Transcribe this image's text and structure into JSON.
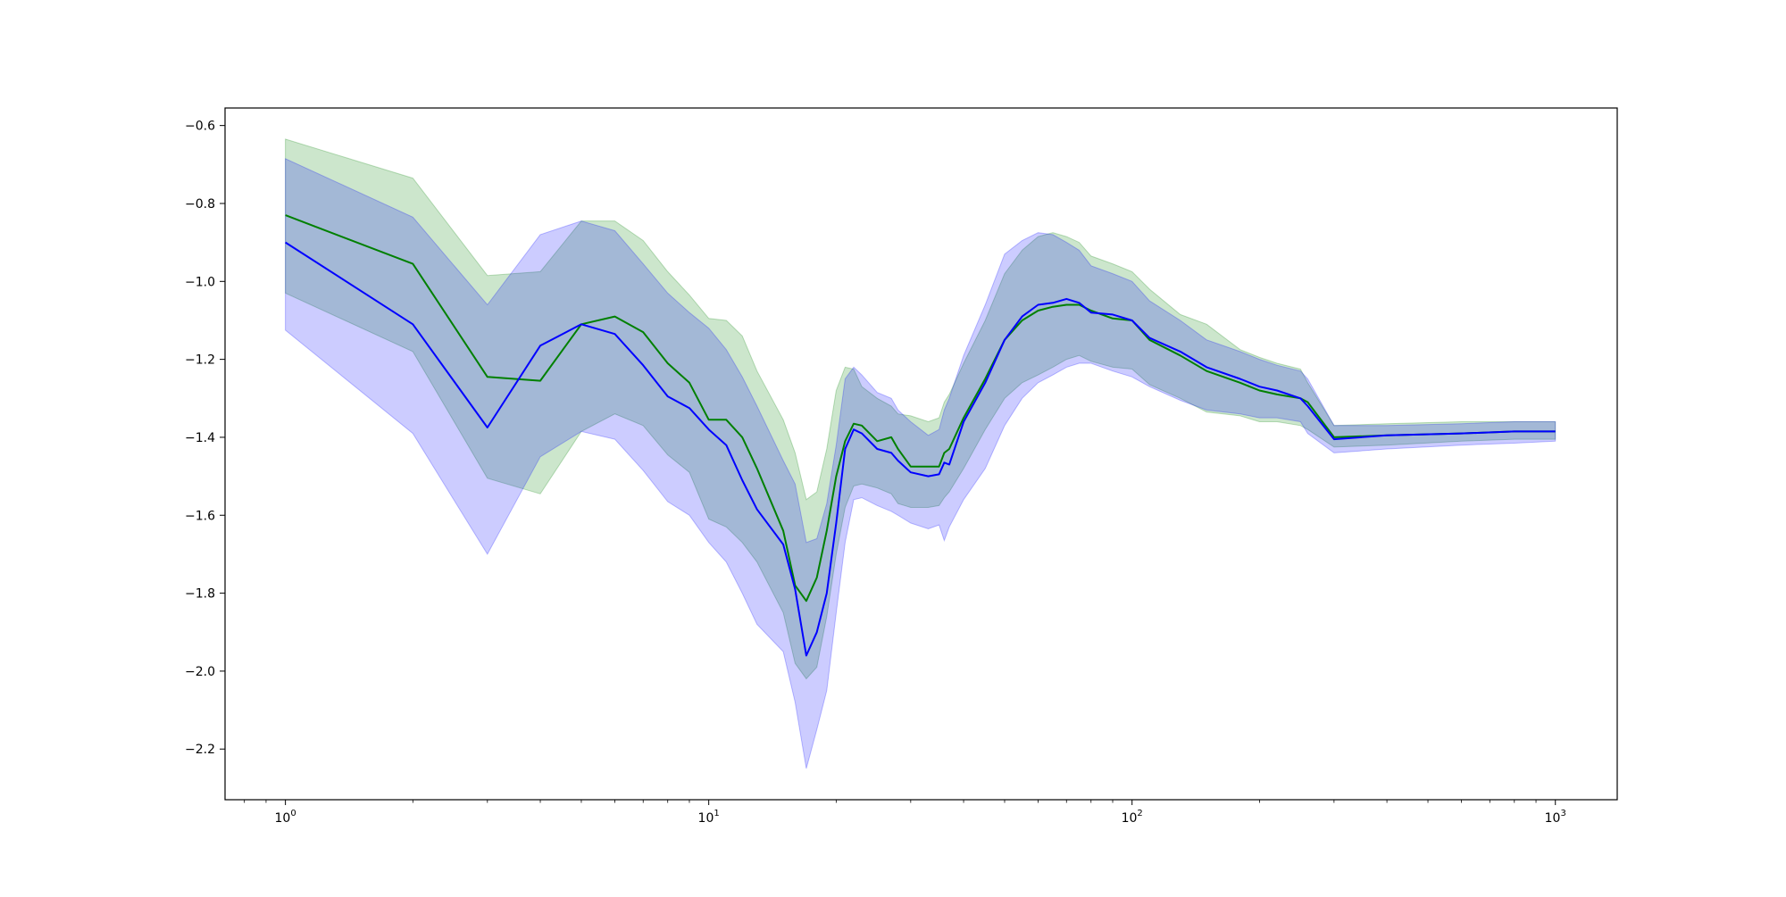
{
  "chart_data": {
    "type": "line",
    "title": "",
    "xlabel": "",
    "ylabel": "",
    "x_scale": "log",
    "xlim": [
      0.72,
      1400
    ],
    "ylim": [
      -2.33,
      -0.555
    ],
    "grid": false,
    "legend": "none",
    "xticks": [
      {
        "value": 1,
        "base": "10",
        "exp": "0"
      },
      {
        "value": 10,
        "base": "10",
        "exp": "1"
      },
      {
        "value": 100,
        "base": "10",
        "exp": "2"
      },
      {
        "value": 1000,
        "base": "10",
        "exp": "3"
      }
    ],
    "yticks": [
      {
        "value": -0.6,
        "label": "−0.6"
      },
      {
        "value": -0.8,
        "label": "−0.8"
      },
      {
        "value": -1.0,
        "label": "−1.0"
      },
      {
        "value": -1.2,
        "label": "−1.2"
      },
      {
        "value": -1.4,
        "label": "−1.4"
      },
      {
        "value": -1.6,
        "label": "−1.6"
      },
      {
        "value": -1.8,
        "label": "−1.8"
      },
      {
        "value": -2.0,
        "label": "−2.0"
      },
      {
        "value": -2.2,
        "label": "−2.2"
      }
    ],
    "x": [
      1,
      2,
      3,
      4,
      5,
      6,
      7,
      8,
      9,
      10,
      11,
      12,
      13,
      15,
      16,
      17,
      18,
      19,
      20,
      21,
      22,
      23,
      25,
      27,
      28,
      30,
      33,
      35,
      36,
      37,
      40,
      45,
      50,
      55,
      60,
      65,
      70,
      75,
      80,
      90,
      100,
      110,
      130,
      150,
      180,
      200,
      220,
      250,
      260,
      300,
      400,
      600,
      800,
      1000
    ],
    "series": [
      {
        "color": "#008000",
        "band_color": "#008000",
        "mean": [
          -0.83,
          -0.955,
          -1.245,
          -1.255,
          -1.11,
          -1.09,
          -1.13,
          -1.21,
          -1.26,
          -1.355,
          -1.355,
          -1.4,
          -1.48,
          -1.64,
          -1.78,
          -1.82,
          -1.76,
          -1.64,
          -1.5,
          -1.41,
          -1.365,
          -1.37,
          -1.41,
          -1.4,
          -1.43,
          -1.475,
          -1.475,
          -1.475,
          -1.44,
          -1.43,
          -1.35,
          -1.25,
          -1.15,
          -1.1,
          -1.075,
          -1.065,
          -1.06,
          -1.06,
          -1.075,
          -1.095,
          -1.1,
          -1.15,
          -1.19,
          -1.23,
          -1.26,
          -1.28,
          -1.29,
          -1.3,
          -1.31,
          -1.4,
          -1.395,
          -1.39,
          -1.385,
          -1.385
        ],
        "upper": [
          -0.635,
          -0.735,
          -0.985,
          -0.975,
          -0.845,
          -0.845,
          -0.895,
          -0.975,
          -1.035,
          -1.095,
          -1.1,
          -1.14,
          -1.23,
          -1.355,
          -1.44,
          -1.56,
          -1.54,
          -1.43,
          -1.28,
          -1.22,
          -1.225,
          -1.27,
          -1.3,
          -1.32,
          -1.34,
          -1.345,
          -1.36,
          -1.35,
          -1.31,
          -1.29,
          -1.21,
          -1.1,
          -0.98,
          -0.92,
          -0.885,
          -0.875,
          -0.885,
          -0.9,
          -0.935,
          -0.955,
          -0.975,
          -1.02,
          -1.085,
          -1.11,
          -1.175,
          -1.195,
          -1.21,
          -1.225,
          -1.26,
          -1.37,
          -1.365,
          -1.36,
          -1.36,
          -1.36
        ],
        "lower": [
          -1.03,
          -1.18,
          -1.505,
          -1.545,
          -1.385,
          -1.34,
          -1.37,
          -1.445,
          -1.49,
          -1.61,
          -1.63,
          -1.67,
          -1.72,
          -1.85,
          -1.98,
          -2.02,
          -1.99,
          -1.86,
          -1.7,
          -1.58,
          -1.525,
          -1.52,
          -1.53,
          -1.545,
          -1.57,
          -1.58,
          -1.58,
          -1.575,
          -1.555,
          -1.54,
          -1.48,
          -1.38,
          -1.3,
          -1.26,
          -1.24,
          -1.22,
          -1.2,
          -1.19,
          -1.205,
          -1.22,
          -1.225,
          -1.265,
          -1.3,
          -1.335,
          -1.345,
          -1.36,
          -1.36,
          -1.37,
          -1.38,
          -1.425,
          -1.42,
          -1.41,
          -1.405,
          -1.405
        ]
      },
      {
        "color": "#0000ff",
        "band_color": "#0000ff",
        "mean": [
          -0.9,
          -1.11,
          -1.375,
          -1.165,
          -1.11,
          -1.135,
          -1.215,
          -1.295,
          -1.325,
          -1.38,
          -1.42,
          -1.51,
          -1.585,
          -1.675,
          -1.79,
          -1.96,
          -1.9,
          -1.8,
          -1.62,
          -1.43,
          -1.38,
          -1.39,
          -1.43,
          -1.44,
          -1.46,
          -1.49,
          -1.5,
          -1.495,
          -1.465,
          -1.47,
          -1.36,
          -1.26,
          -1.15,
          -1.09,
          -1.06,
          -1.055,
          -1.045,
          -1.055,
          -1.08,
          -1.085,
          -1.1,
          -1.145,
          -1.18,
          -1.22,
          -1.25,
          -1.27,
          -1.28,
          -1.3,
          -1.32,
          -1.405,
          -1.395,
          -1.39,
          -1.385,
          -1.385
        ],
        "upper": [
          -0.685,
          -0.835,
          -1.06,
          -0.88,
          -0.845,
          -0.87,
          -0.955,
          -1.03,
          -1.08,
          -1.12,
          -1.175,
          -1.245,
          -1.32,
          -1.46,
          -1.52,
          -1.67,
          -1.66,
          -1.57,
          -1.42,
          -1.25,
          -1.22,
          -1.24,
          -1.285,
          -1.3,
          -1.33,
          -1.36,
          -1.395,
          -1.38,
          -1.33,
          -1.3,
          -1.19,
          -1.06,
          -0.93,
          -0.895,
          -0.875,
          -0.88,
          -0.9,
          -0.92,
          -0.96,
          -0.98,
          -1.0,
          -1.05,
          -1.1,
          -1.15,
          -1.18,
          -1.2,
          -1.215,
          -1.23,
          -1.25,
          -1.37,
          -1.37,
          -1.365,
          -1.36,
          -1.36
        ],
        "lower": [
          -1.125,
          -1.39,
          -1.7,
          -1.45,
          -1.385,
          -1.405,
          -1.485,
          -1.565,
          -1.6,
          -1.67,
          -1.72,
          -1.8,
          -1.88,
          -1.95,
          -2.08,
          -2.25,
          -2.15,
          -2.05,
          -1.85,
          -1.67,
          -1.56,
          -1.555,
          -1.575,
          -1.59,
          -1.6,
          -1.62,
          -1.635,
          -1.625,
          -1.665,
          -1.63,
          -1.56,
          -1.48,
          -1.37,
          -1.3,
          -1.26,
          -1.24,
          -1.22,
          -1.21,
          -1.21,
          -1.23,
          -1.245,
          -1.27,
          -1.305,
          -1.33,
          -1.34,
          -1.35,
          -1.35,
          -1.36,
          -1.39,
          -1.44,
          -1.43,
          -1.42,
          -1.415,
          -1.41
        ]
      }
    ]
  }
}
